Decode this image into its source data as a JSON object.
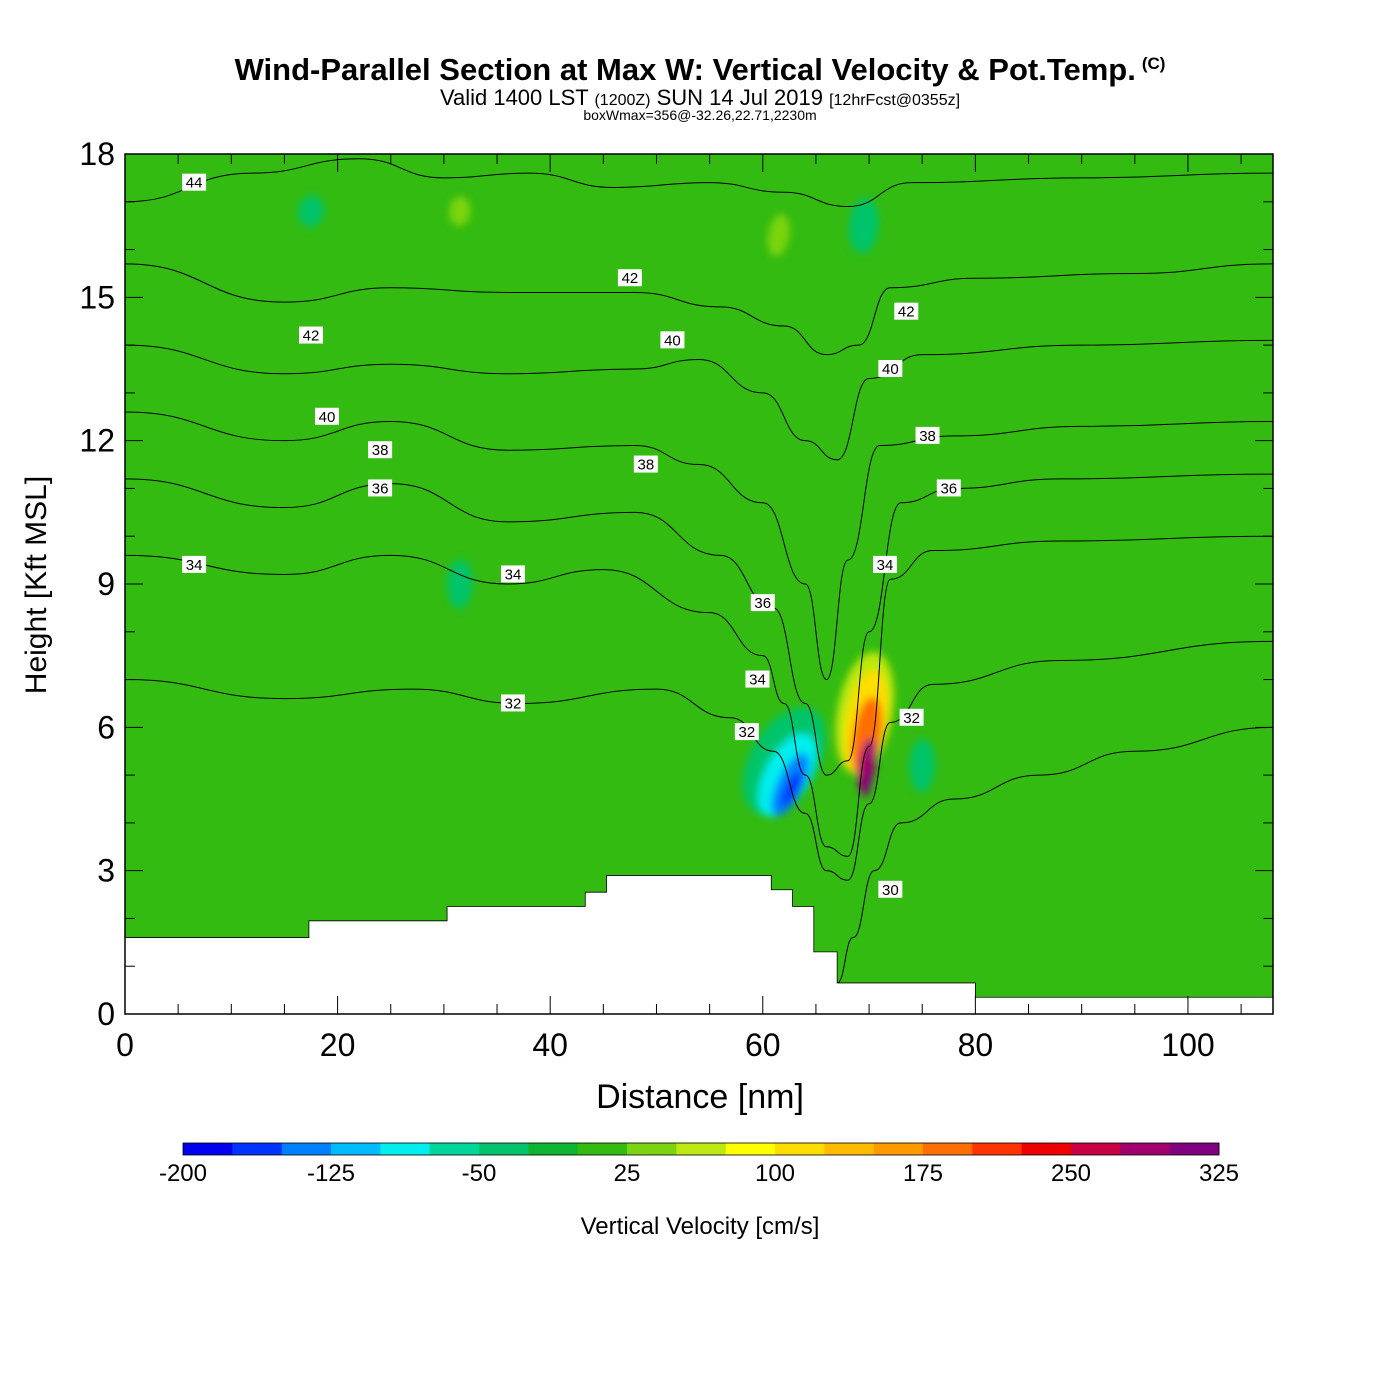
{
  "header": {
    "title": "Wind-Parallel Section at Max W: Vertical Velocity & Pot.Temp.",
    "copyright": "(C)",
    "valid_prefix": "Valid 1400 LST",
    "valid_utc": "(1200Z)",
    "valid_date": "SUN 14 Jul 2019",
    "forecast": "[12hrFcst@0355z]",
    "box_info": "boxWmax=356@-32.26,22.71,2230m"
  },
  "colors": {
    "background_field": "#33bb11",
    "terrain": "#ffffff",
    "contour": "#000000"
  },
  "chart_data": {
    "type": "heatmap",
    "subtype": "cross-section contour",
    "xlabel": "Distance [nm]",
    "ylabel": "Height [Kft MSL]",
    "xlim": [
      0,
      108
    ],
    "ylim": [
      0,
      18
    ],
    "x_ticks": [
      "0",
      "20",
      "40",
      "60",
      "80",
      "100"
    ],
    "x_tick_values": [
      0,
      20,
      40,
      60,
      80,
      100
    ],
    "y_ticks": [
      "0",
      "3",
      "6",
      "9",
      "12",
      "15",
      "18"
    ],
    "y_tick_values": [
      0,
      3,
      6,
      9,
      12,
      15,
      18
    ],
    "colorbar": {
      "label": "Vertical Velocity [cm/s]",
      "tick_labels": [
        "-200",
        "-125",
        "-50",
        "25",
        "100",
        "175",
        "250",
        "325"
      ],
      "colors": [
        "#0000ee",
        "#0033ff",
        "#0080ff",
        "#00bbff",
        "#00eeee",
        "#00d699",
        "#00c46b",
        "#0cb431",
        "#33bb11",
        "#7cd411",
        "#bde811",
        "#ffff00",
        "#ffdd00",
        "#ffbb00",
        "#ff9900",
        "#ff6e00",
        "#ff3300",
        "#ee0000",
        "#c80044",
        "#a0006e",
        "#800080"
      ]
    },
    "terrain_kft": [
      [
        0,
        1.6
      ],
      [
        17.3,
        1.6
      ],
      [
        17.3,
        1.95
      ],
      [
        30.3,
        1.95
      ],
      [
        30.3,
        2.25
      ],
      [
        43.3,
        2.25
      ],
      [
        43.3,
        2.55
      ],
      [
        45.3,
        2.55
      ],
      [
        45.3,
        2.9
      ],
      [
        60.8,
        2.9
      ],
      [
        60.8,
        2.6
      ],
      [
        62.8,
        2.6
      ],
      [
        62.8,
        2.25
      ],
      [
        64.8,
        2.25
      ],
      [
        64.8,
        1.3
      ],
      [
        67,
        1.3
      ],
      [
        67,
        0.65
      ],
      [
        80,
        0.65
      ],
      [
        80,
        0.35
      ],
      [
        108,
        0.35
      ]
    ],
    "field_blobs": [
      {
        "name": "downdraft-outer",
        "x": 62.0,
        "y": 5.3,
        "rx": 5.5,
        "ry": 3.2,
        "rot": -60,
        "value": -50
      },
      {
        "name": "downdraft-mid",
        "x": 62.3,
        "y": 5.0,
        "rx": 4.3,
        "ry": 2.1,
        "rot": -62,
        "value": -100
      },
      {
        "name": "downdraft-core",
        "x": 62.6,
        "y": 4.8,
        "rx": 3.2,
        "ry": 1.2,
        "rot": -64,
        "value": -150
      },
      {
        "name": "downdraft-center",
        "x": 62.7,
        "y": 4.7,
        "rx": 1.8,
        "ry": 0.55,
        "rot": -64,
        "value": -175
      },
      {
        "name": "updraft-outer",
        "x": 69.6,
        "y": 6.3,
        "rx": 5.8,
        "ry": 2.6,
        "rot": -80,
        "value": 60
      },
      {
        "name": "updraft-yellow",
        "x": 69.7,
        "y": 6.1,
        "rx": 5.0,
        "ry": 1.9,
        "rot": -80,
        "value": 100
      },
      {
        "name": "updraft-orange",
        "x": 69.8,
        "y": 5.8,
        "rx": 3.8,
        "ry": 1.35,
        "rot": -81,
        "value": 175
      },
      {
        "name": "updraft-red",
        "x": 69.8,
        "y": 5.2,
        "rx": 2.6,
        "ry": 0.8,
        "rot": -82,
        "value": 275
      },
      {
        "name": "updraft-core",
        "x": 69.8,
        "y": 4.8,
        "rx": 1.2,
        "ry": 0.35,
        "rot": -82,
        "value": 325
      },
      {
        "name": "teal-left",
        "x": 31.5,
        "y": 9.0,
        "rx": 2.3,
        "ry": 1.2,
        "rot": -88,
        "value": -30
      },
      {
        "name": "teal-right",
        "x": 75.0,
        "y": 5.2,
        "rx": 2.5,
        "ry": 1.2,
        "rot": -88,
        "value": -30
      },
      {
        "name": "teal-top",
        "x": 69.5,
        "y": 16.5,
        "rx": 2.6,
        "ry": 1.4,
        "rot": -85,
        "value": -30
      },
      {
        "name": "teal-top-left",
        "x": 17.5,
        "y": 16.8,
        "rx": 1.5,
        "ry": 1.2,
        "rot": -80,
        "value": -30
      },
      {
        "name": "lime-top-1",
        "x": 31.5,
        "y": 16.8,
        "rx": 1.4,
        "ry": 1.0,
        "rot": -85,
        "value": 40
      },
      {
        "name": "lime-top-2",
        "x": 61.5,
        "y": 16.3,
        "rx": 2.0,
        "ry": 1.0,
        "rot": -80,
        "value": 40
      }
    ],
    "isentropes": [
      {
        "label": "30",
        "points": [
          [
            67,
            0.65
          ],
          [
            68.5,
            1.6
          ],
          [
            70.5,
            3.0
          ],
          [
            73,
            4.0
          ],
          [
            78,
            4.5
          ],
          [
            86,
            5.0
          ],
          [
            95,
            5.5
          ],
          [
            108,
            6.0
          ]
        ]
      },
      {
        "label": "32",
        "points": [
          [
            0,
            7.0
          ],
          [
            15,
            6.6
          ],
          [
            27,
            6.8
          ],
          [
            37,
            6.5
          ],
          [
            50,
            6.8
          ],
          [
            57,
            6.2
          ],
          [
            61,
            5.5
          ],
          [
            64,
            4.2
          ],
          [
            66,
            3.0
          ],
          [
            68,
            2.8
          ],
          [
            70,
            4.4
          ],
          [
            72,
            6.1
          ],
          [
            76,
            6.9
          ],
          [
            88,
            7.4
          ],
          [
            108,
            7.8
          ]
        ]
      },
      {
        "label": "34",
        "points": [
          [
            0,
            9.6
          ],
          [
            15,
            9.2
          ],
          [
            25,
            9.6
          ],
          [
            36,
            9.0
          ],
          [
            45,
            9.3
          ],
          [
            55,
            8.4
          ],
          [
            60,
            7.5
          ],
          [
            62,
            6.5
          ],
          [
            64,
            5.0
          ],
          [
            66,
            3.5
          ],
          [
            68,
            3.3
          ],
          [
            70,
            5.6
          ],
          [
            72,
            9.1
          ],
          [
            76,
            9.7
          ],
          [
            88,
            9.9
          ],
          [
            108,
            10.0
          ]
        ]
      },
      {
        "label": "36",
        "points": [
          [
            0,
            11.2
          ],
          [
            15,
            10.6
          ],
          [
            25,
            11.1
          ],
          [
            36,
            10.3
          ],
          [
            48,
            10.5
          ],
          [
            56,
            9.6
          ],
          [
            61,
            8.5
          ],
          [
            64,
            6.5
          ],
          [
            66,
            5.0
          ],
          [
            68,
            5.3
          ],
          [
            70,
            8.0
          ],
          [
            73,
            10.7
          ],
          [
            78,
            11.0
          ],
          [
            88,
            11.2
          ],
          [
            108,
            11.3
          ]
        ]
      },
      {
        "label": "38",
        "points": [
          [
            0,
            12.6
          ],
          [
            15,
            12.0
          ],
          [
            25,
            12.4
          ],
          [
            36,
            11.8
          ],
          [
            48,
            11.9
          ],
          [
            54,
            11.5
          ],
          [
            60,
            10.7
          ],
          [
            64,
            9.0
          ],
          [
            66,
            7.0
          ],
          [
            68,
            9.5
          ],
          [
            71,
            11.9
          ],
          [
            78,
            12.1
          ],
          [
            90,
            12.3
          ],
          [
            108,
            12.4
          ]
        ]
      },
      {
        "label": "40",
        "points": [
          [
            0,
            14.0
          ],
          [
            15,
            13.4
          ],
          [
            25,
            13.6
          ],
          [
            36,
            13.4
          ],
          [
            48,
            13.5
          ],
          [
            54,
            13.7
          ],
          [
            60,
            13.0
          ],
          [
            64,
            12.0
          ],
          [
            67,
            11.6
          ],
          [
            70,
            13.3
          ],
          [
            75,
            13.8
          ],
          [
            90,
            14.0
          ],
          [
            108,
            14.1
          ]
        ]
      },
      {
        "label": "42",
        "points": [
          [
            0,
            15.7
          ],
          [
            15,
            14.9
          ],
          [
            25,
            15.2
          ],
          [
            36,
            15.1
          ],
          [
            48,
            15.1
          ],
          [
            56,
            14.8
          ],
          [
            62,
            14.4
          ],
          [
            66,
            13.8
          ],
          [
            69,
            14.0
          ],
          [
            72,
            15.2
          ],
          [
            80,
            15.4
          ],
          [
            95,
            15.5
          ],
          [
            108,
            15.7
          ]
        ]
      },
      {
        "label": "44",
        "points": [
          [
            0,
            17.0
          ],
          [
            12,
            17.6
          ],
          [
            22,
            17.9
          ],
          [
            30,
            17.5
          ],
          [
            38,
            17.6
          ],
          [
            46,
            17.3
          ],
          [
            55,
            17.4
          ],
          [
            62,
            17.2
          ],
          [
            68,
            16.9
          ],
          [
            74,
            17.4
          ],
          [
            90,
            17.5
          ],
          [
            108,
            17.6
          ]
        ]
      }
    ],
    "isentrope_labels": [
      {
        "text": "44",
        "x": 6.5,
        "y": 17.4
      },
      {
        "text": "42",
        "x": 17.5,
        "y": 14.2
      },
      {
        "text": "42",
        "x": 47.5,
        "y": 15.4
      },
      {
        "text": "42",
        "x": 73.5,
        "y": 14.7
      },
      {
        "text": "40",
        "x": 19.0,
        "y": 12.5
      },
      {
        "text": "40",
        "x": 51.5,
        "y": 14.1
      },
      {
        "text": "40",
        "x": 72.0,
        "y": 13.5
      },
      {
        "text": "38",
        "x": 24.0,
        "y": 11.8
      },
      {
        "text": "38",
        "x": 49.0,
        "y": 11.5
      },
      {
        "text": "38",
        "x": 75.5,
        "y": 12.1
      },
      {
        "text": "36",
        "x": 24.0,
        "y": 11.0
      },
      {
        "text": "36",
        "x": 60.0,
        "y": 8.6
      },
      {
        "text": "36",
        "x": 77.5,
        "y": 11.0
      },
      {
        "text": "34",
        "x": 6.5,
        "y": 9.4
      },
      {
        "text": "34",
        "x": 36.5,
        "y": 9.2
      },
      {
        "text": "34",
        "x": 59.5,
        "y": 7.0
      },
      {
        "text": "34",
        "x": 71.5,
        "y": 9.4
      },
      {
        "text": "32",
        "x": 36.5,
        "y": 6.5
      },
      {
        "text": "32",
        "x": 58.5,
        "y": 5.9
      },
      {
        "text": "32",
        "x": 74.0,
        "y": 6.2
      },
      {
        "text": "30",
        "x": 72.0,
        "y": 2.6
      }
    ]
  }
}
